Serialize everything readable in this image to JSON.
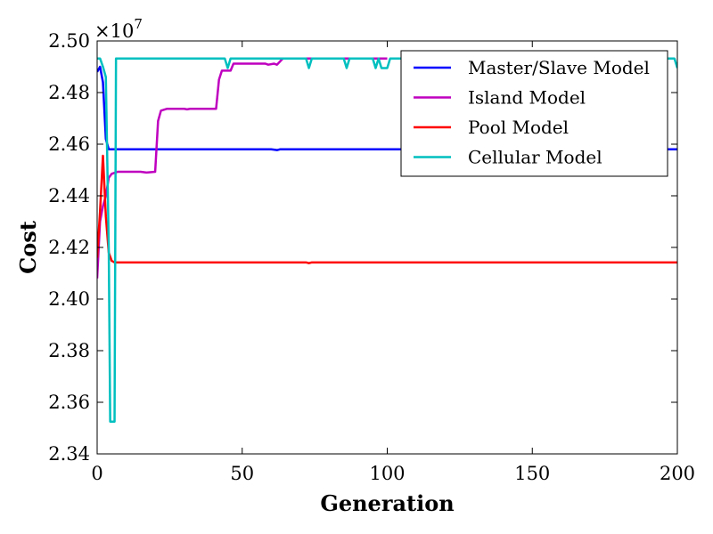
{
  "chart_data": {
    "type": "line",
    "title": "",
    "xlabel": "Generation",
    "ylabel": "Cost",
    "xlim": [
      0,
      200
    ],
    "ylim": [
      2.34,
      2.5
    ],
    "x_ticks": [
      0,
      50,
      100,
      150,
      200
    ],
    "x_tick_labels": [
      "0",
      "50",
      "100",
      "150",
      "200"
    ],
    "y_ticks": [
      2.34,
      2.36,
      2.38,
      2.4,
      2.42,
      2.44,
      2.46,
      2.48,
      2.5
    ],
    "y_tick_labels": [
      "2.34",
      "2.36",
      "2.38",
      "2.40",
      "2.42",
      "2.44",
      "2.46",
      "2.48",
      "2.50"
    ],
    "y_multiplier_base": "×10",
    "y_multiplier_exp": "7",
    "grid": false,
    "legend_position": "top-right",
    "series": [
      {
        "name": "Master/Slave Model",
        "color": "#0000ff",
        "points": [
          [
            0,
            2.488
          ],
          [
            1,
            2.49
          ],
          [
            2,
            2.484
          ],
          [
            3,
            2.462
          ],
          [
            4,
            2.458
          ],
          [
            60,
            2.458
          ],
          [
            62,
            2.4577
          ],
          [
            63,
            2.458
          ],
          [
            200,
            2.458
          ]
        ]
      },
      {
        "name": "Island Model",
        "color": "#bf00bf",
        "points": [
          [
            0,
            2.408
          ],
          [
            1,
            2.43
          ],
          [
            2,
            2.436
          ],
          [
            3,
            2.44
          ],
          [
            4,
            2.447
          ],
          [
            5,
            2.4485
          ],
          [
            7,
            2.4493
          ],
          [
            15,
            2.4493
          ],
          [
            17,
            2.449
          ],
          [
            20,
            2.4493
          ],
          [
            21,
            2.469
          ],
          [
            22,
            2.473
          ],
          [
            24,
            2.4737
          ],
          [
            30,
            2.4737
          ],
          [
            31,
            2.4735
          ],
          [
            32,
            2.4737
          ],
          [
            41,
            2.4737
          ],
          [
            42,
            2.485
          ],
          [
            43,
            2.4885
          ],
          [
            46,
            2.4885
          ],
          [
            47,
            2.4912
          ],
          [
            58,
            2.4912
          ],
          [
            59,
            2.4908
          ],
          [
            61,
            2.4912
          ],
          [
            62,
            2.4908
          ],
          [
            64,
            2.4932
          ],
          [
            100,
            2.4932
          ]
        ]
      },
      {
        "name": "Pool Model",
        "color": "#ff0000",
        "points": [
          [
            0,
            2.416
          ],
          [
            1,
            2.434
          ],
          [
            2,
            2.4555
          ],
          [
            3,
            2.432
          ],
          [
            4,
            2.418
          ],
          [
            5,
            2.4148
          ],
          [
            6,
            2.4142
          ],
          [
            72,
            2.4142
          ],
          [
            73,
            2.4139
          ],
          [
            74,
            2.4142
          ],
          [
            200,
            2.4142
          ]
        ]
      },
      {
        "name": "Cellular Model",
        "color": "#00bfbf",
        "points": [
          [
            0,
            2.4932
          ],
          [
            1,
            2.4932
          ],
          [
            2,
            2.49
          ],
          [
            3,
            2.486
          ],
          [
            4,
            2.42
          ],
          [
            4.5,
            2.3525
          ],
          [
            6,
            2.3525
          ],
          [
            6.5,
            2.4932
          ],
          [
            44,
            2.4932
          ],
          [
            45,
            2.4895
          ],
          [
            46,
            2.4932
          ],
          [
            72,
            2.4932
          ],
          [
            73,
            2.4895
          ],
          [
            74,
            2.4932
          ],
          [
            85,
            2.4932
          ],
          [
            86,
            2.4895
          ],
          [
            87,
            2.4932
          ],
          [
            95,
            2.4932
          ],
          [
            96,
            2.4895
          ],
          [
            97,
            2.4932
          ],
          [
            98,
            2.4895
          ],
          [
            100,
            2.4895
          ],
          [
            101,
            2.4932
          ],
          [
            199,
            2.4932
          ],
          [
            200,
            2.4895
          ]
        ]
      }
    ]
  }
}
